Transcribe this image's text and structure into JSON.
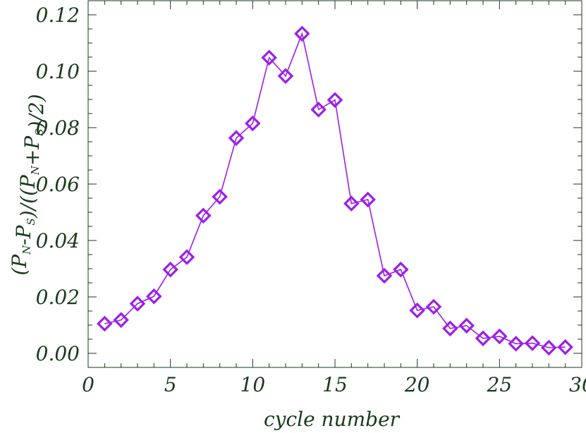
{
  "chart_data": {
    "type": "line",
    "xlabel": "cycle number",
    "ylabel": {
      "parts": [
        {
          "t": "(P",
          "sub": false
        },
        {
          "t": "N",
          "sub": true
        },
        {
          "t": "-P",
          "sub": false
        },
        {
          "t": "S",
          "sub": true
        },
        {
          "t": ")/((P",
          "sub": false
        },
        {
          "t": "N",
          "sub": true
        },
        {
          "t": "+P",
          "sub": false
        },
        {
          "t": "S",
          "sub": true
        },
        {
          "t": ")/2)",
          "sub": false
        }
      ]
    },
    "xlim": [
      0,
      30
    ],
    "ylim": [
      -0.005,
      0.125
    ],
    "xticks": [
      0,
      5,
      10,
      15,
      20,
      25,
      30
    ],
    "xtick_labels": [
      "0",
      "5",
      "10",
      "15",
      "20",
      "25",
      "30"
    ],
    "yticks": [
      0.0,
      0.02,
      0.04,
      0.06,
      0.08,
      0.1,
      0.12
    ],
    "ytick_labels": [
      "0.00",
      "0.02",
      "0.04",
      "0.06",
      "0.08",
      "0.10",
      "0.12"
    ],
    "grid": false,
    "marker": "diamond",
    "color": "#9b1fe8",
    "series": [
      {
        "x": [
          1,
          2,
          3,
          4,
          5,
          6,
          7,
          8,
          9,
          10,
          11,
          12,
          13,
          14,
          15,
          16,
          17,
          18,
          19,
          20,
          21,
          22,
          23,
          24,
          25,
          26,
          27,
          28,
          29
        ],
        "y": [
          0.0105,
          0.0118,
          0.0176,
          0.0202,
          0.0297,
          0.0341,
          0.0488,
          0.0555,
          0.0763,
          0.0815,
          0.1048,
          0.0983,
          0.1133,
          0.0864,
          0.0898,
          0.0531,
          0.0545,
          0.0275,
          0.0297,
          0.0152,
          0.0165,
          0.0088,
          0.0098,
          0.0053,
          0.006,
          0.0034,
          0.0036,
          0.002,
          0.0022
        ]
      }
    ]
  }
}
